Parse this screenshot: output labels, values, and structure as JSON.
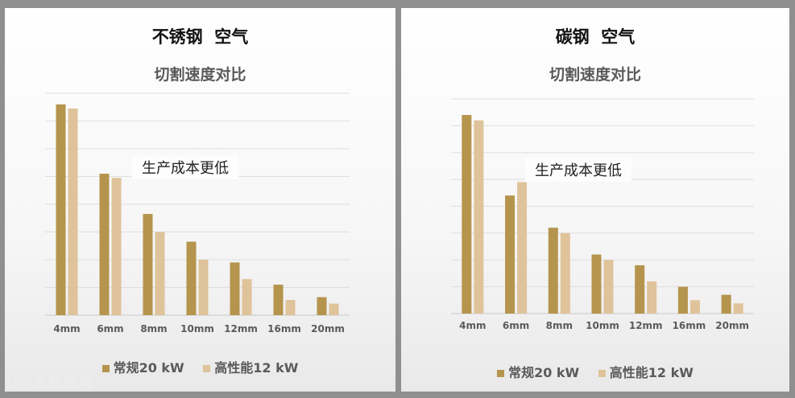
{
  "chart_data": [
    {
      "type": "bar",
      "title": "不锈钢  空气",
      "subtitle": "切割速度对比",
      "annotation": "生产成本更低",
      "categories": [
        "4mm",
        "6mm",
        "8mm",
        "10mm",
        "12mm",
        "16mm",
        "20mm"
      ],
      "series": [
        {
          "name": "常规20 kW",
          "color": "#b5944d",
          "values": [
            7.6,
            5.1,
            3.65,
            2.65,
            1.9,
            1.1,
            0.65
          ]
        },
        {
          "name": "高性能12 kW",
          "color": "#dfc39a",
          "values": [
            7.45,
            4.95,
            3.0,
            2.0,
            1.3,
            0.55,
            0.42
          ]
        }
      ],
      "ylim": [
        0,
        8
      ],
      "grid": true,
      "legend": "bottom"
    },
    {
      "type": "bar",
      "title": "碳钢  空气",
      "subtitle": "切割速度对比",
      "annotation": "生产成本更低",
      "categories": [
        "4mm",
        "6mm",
        "8mm",
        "10mm",
        "12mm",
        "16mm",
        "20mm"
      ],
      "series": [
        {
          "name": "常规20 kW",
          "color": "#b5944d",
          "values": [
            7.4,
            4.4,
            3.2,
            2.2,
            1.8,
            1.0,
            0.7
          ]
        },
        {
          "name": "高性能12 kW",
          "color": "#dfc39a",
          "values": [
            7.2,
            4.9,
            3.0,
            2.0,
            1.2,
            0.5,
            0.38
          ]
        }
      ],
      "ylim": [
        0,
        8
      ],
      "grid": true,
      "legend": "bottom"
    }
  ],
  "watermark": "大数跨境"
}
